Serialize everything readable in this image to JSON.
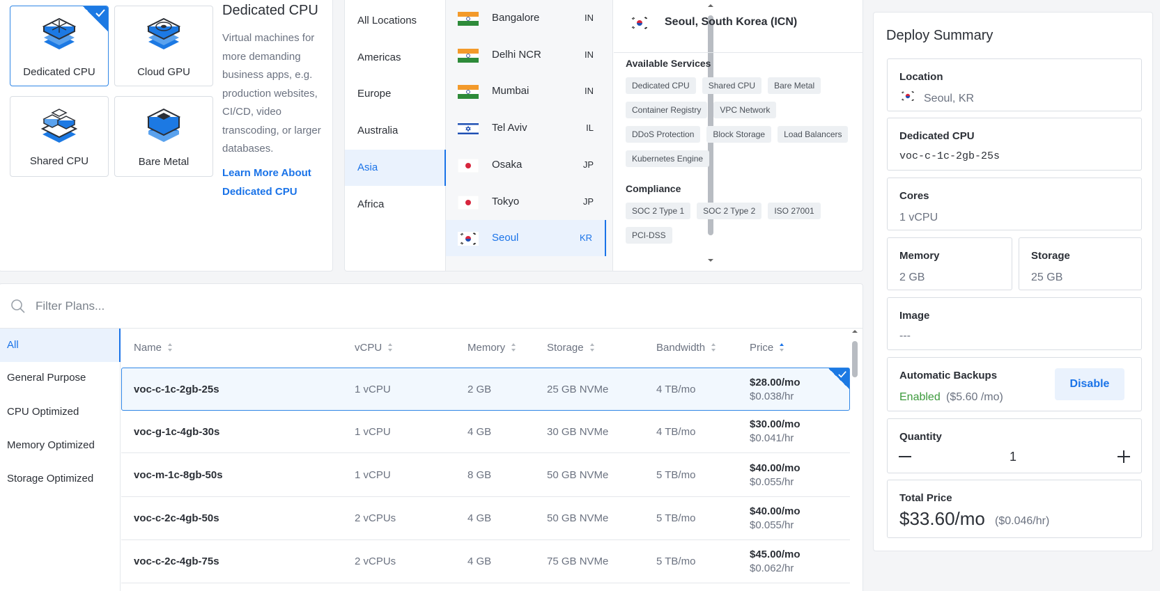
{
  "product_types": [
    {
      "label": "Dedicated CPU",
      "icon": "dedicated-cpu-icon",
      "selected": true
    },
    {
      "label": "Cloud GPU",
      "icon": "cloud-gpu-icon",
      "selected": false
    },
    {
      "label": "Shared CPU",
      "icon": "shared-cpu-icon",
      "selected": false
    },
    {
      "label": "Bare Metal",
      "icon": "bare-metal-icon",
      "selected": false
    }
  ],
  "type_info": {
    "title": "Dedicated CPU",
    "description": "Virtual machines for more demanding business apps, e.g. production websites, CI/CD, video transcoding, or larger databases.",
    "learn_more": "Learn More About Dedicated CPU"
  },
  "regions": [
    "All Locations",
    "Americas",
    "Europe",
    "Australia",
    "Asia",
    "Africa"
  ],
  "active_region": "Asia",
  "cities": [
    {
      "name": "Bangalore",
      "code": "IN",
      "flag": "flag-india-icon"
    },
    {
      "name": "Delhi NCR",
      "code": "IN",
      "flag": "flag-india-icon"
    },
    {
      "name": "Mumbai",
      "code": "IN",
      "flag": "flag-india-icon"
    },
    {
      "name": "Tel Aviv",
      "code": "IL",
      "flag": "flag-israel-icon"
    },
    {
      "name": "Osaka",
      "code": "JP",
      "flag": "flag-japan-icon"
    },
    {
      "name": "Tokyo",
      "code": "JP",
      "flag": "flag-japan-icon"
    },
    {
      "name": "Seoul",
      "code": "KR",
      "flag": "flag-korea-icon",
      "active": true
    }
  ],
  "location_detail": {
    "title": "Seoul, South Korea (ICN)",
    "services_title": "Available Services",
    "services": [
      "Dedicated CPU",
      "Shared CPU",
      "Bare Metal",
      "Container Registry",
      "VPC Network",
      "DDoS Protection",
      "Block Storage",
      "Load Balancers",
      "Kubernetes Engine"
    ],
    "compliance_title": "Compliance",
    "compliance": [
      "SOC 2 Type 1",
      "SOC 2 Type 2",
      "ISO 27001",
      "PCI-DSS"
    ]
  },
  "filter": {
    "placeholder": "Filter Plans..."
  },
  "categories": [
    "All",
    "General Purpose",
    "CPU Optimized",
    "Memory Optimized",
    "Storage Optimized"
  ],
  "active_category": "All",
  "table": {
    "headers": [
      "Name",
      "vCPU",
      "Memory",
      "Storage",
      "Bandwidth",
      "Price"
    ],
    "sorted_by": "Price",
    "rows": [
      {
        "name": "voc-c-1c-2gb-25s",
        "vcpu": "1 vCPU",
        "memory": "2 GB",
        "storage": "25 GB NVMe",
        "bandwidth": "4 TB/mo",
        "price_mo": "$28.00/mo",
        "price_hr": "$0.038/hr",
        "selected": true
      },
      {
        "name": "voc-g-1c-4gb-30s",
        "vcpu": "1 vCPU",
        "memory": "4 GB",
        "storage": "30 GB NVMe",
        "bandwidth": "4 TB/mo",
        "price_mo": "$30.00/mo",
        "price_hr": "$0.041/hr"
      },
      {
        "name": "voc-m-1c-8gb-50s",
        "vcpu": "1 vCPU",
        "memory": "8 GB",
        "storage": "50 GB NVMe",
        "bandwidth": "5 TB/mo",
        "price_mo": "$40.00/mo",
        "price_hr": "$0.055/hr"
      },
      {
        "name": "voc-c-2c-4gb-50s",
        "vcpu": "2 vCPUs",
        "memory": "4 GB",
        "storage": "50 GB NVMe",
        "bandwidth": "5 TB/mo",
        "price_mo": "$40.00/mo",
        "price_hr": "$0.055/hr"
      },
      {
        "name": "voc-c-2c-4gb-75s",
        "vcpu": "2 vCPUs",
        "memory": "4 GB",
        "storage": "75 GB NVMe",
        "bandwidth": "5 TB/mo",
        "price_mo": "$45.00/mo",
        "price_hr": "$0.062/hr"
      }
    ]
  },
  "summary": {
    "title": "Deploy Summary",
    "location_label": "Location",
    "location_value": "Seoul, KR",
    "plan_label": "Dedicated CPU",
    "plan_value": "voc-c-1c-2gb-25s",
    "cores_label": "Cores",
    "cores_value": "1 vCPU",
    "memory_label": "Memory",
    "memory_value": "2 GB",
    "storage_label": "Storage",
    "storage_value": "25 GB",
    "image_label": "Image",
    "image_value": "---",
    "backups_label": "Automatic Backups",
    "backups_status": "Enabled",
    "backups_price": "($5.60 /mo)",
    "backups_button": "Disable",
    "quantity_label": "Quantity",
    "quantity_value": "1",
    "total_label": "Total Price",
    "total_mo": "$33.60/mo",
    "total_hr": "($0.046/hr)"
  },
  "colors": {
    "accent": "#1a73e8",
    "selected_border": "#2f86e6",
    "enabled": "#3c9a3c",
    "product_icon": "#1c79e3"
  }
}
